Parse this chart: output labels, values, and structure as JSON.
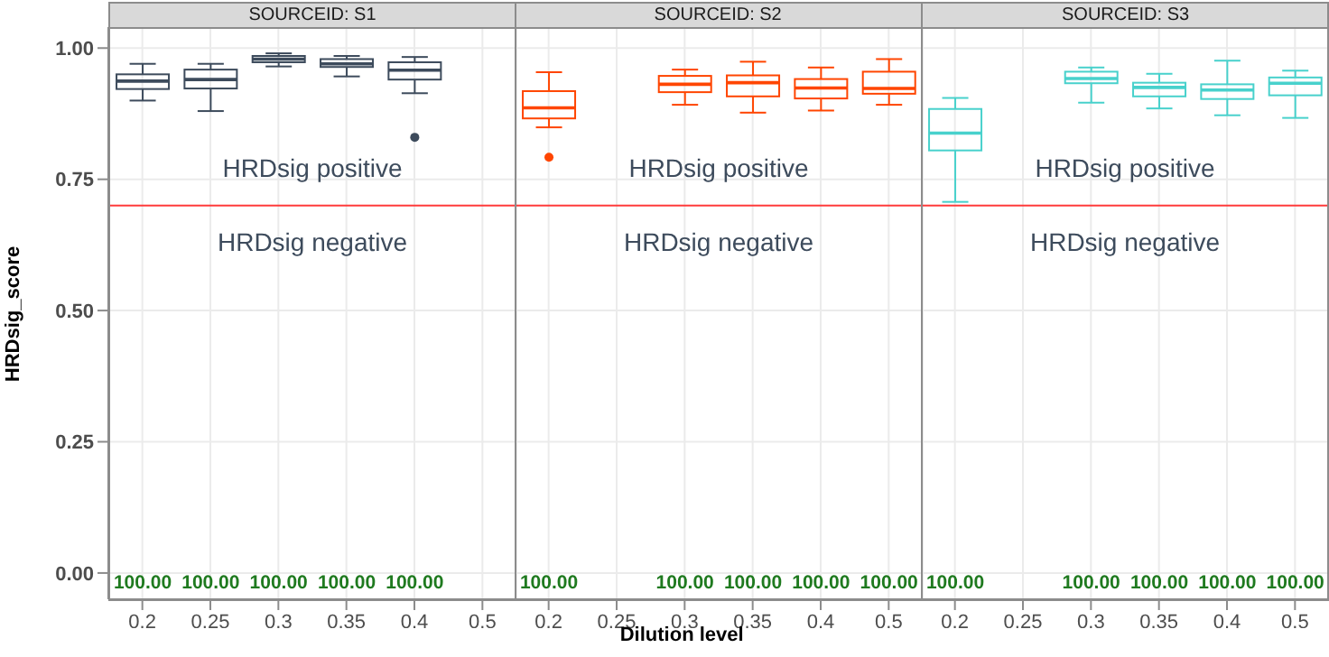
{
  "chart_data": [
    {
      "type": "box",
      "title": "SOURCEID: S1",
      "ylabel": "HRDsig_score",
      "categories": [
        "0.2",
        "0.25",
        "0.3",
        "0.35",
        "0.4",
        "0.5"
      ],
      "color": "#3d4b5c",
      "boxes": [
        {
          "low": 0.9,
          "q1": 0.922,
          "median": 0.937,
          "q3": 0.95,
          "high": 0.97
        },
        {
          "low": 0.88,
          "q1": 0.923,
          "median": 0.94,
          "q3": 0.959,
          "high": 0.97
        },
        {
          "low": 0.965,
          "q1": 0.973,
          "median": 0.979,
          "q3": 0.985,
          "high": 0.99
        },
        {
          "low": 0.946,
          "q1": 0.964,
          "median": 0.97,
          "q3": 0.979,
          "high": 0.985
        },
        {
          "low": 0.914,
          "q1": 0.94,
          "median": 0.958,
          "q3": 0.973,
          "high": 0.983,
          "outliers": [
            0.83
          ]
        },
        null
      ],
      "ylim": [
        -0.05,
        1.04
      ],
      "yticks": [
        {
          "value": 0,
          "label": "0.00"
        },
        {
          "value": 0.25,
          "label": "0.25"
        },
        {
          "value": 0.5,
          "label": "0.50"
        },
        {
          "value": 0.75,
          "label": "0.75"
        },
        {
          "value": 1,
          "label": "1.00"
        }
      ],
      "grid": true,
      "ref_lines": [
        {
          "axis": "y",
          "value": 0.7,
          "color": "#ff3b3b"
        }
      ],
      "annotations": [
        "HRDsig positive",
        "HRDsig negative",
        "100.00",
        "100.00",
        "100.00",
        "100.00",
        "100.00"
      ]
    },
    {
      "type": "box",
      "title": "SOURCEID: S2",
      "xlabel": "Dilution level",
      "categories": [
        "0.2",
        "0.25",
        "0.3",
        "0.35",
        "0.4",
        "0.5"
      ],
      "color": "#ff4500",
      "tick_labels": "x",
      "boxes": [
        {
          "low": 0.849,
          "q1": 0.866,
          "median": 0.886,
          "q3": 0.918,
          "high": 0.954,
          "outliers": [
            0.792
          ]
        },
        null,
        {
          "low": 0.892,
          "q1": 0.916,
          "median": 0.931,
          "q3": 0.947,
          "high": 0.959
        },
        {
          "low": 0.877,
          "q1": 0.908,
          "median": 0.934,
          "q3": 0.948,
          "high": 0.974
        },
        {
          "low": 0.881,
          "q1": 0.904,
          "median": 0.924,
          "q3": 0.941,
          "high": 0.963
        },
        {
          "low": 0.892,
          "q1": 0.913,
          "median": 0.923,
          "q3": 0.955,
          "high": 0.979
        }
      ],
      "ylim": [
        -0.05,
        1.04
      ],
      "yticks": [
        0,
        0.25,
        0.5,
        0.75,
        1
      ],
      "grid": true,
      "ref_lines": [
        {
          "axis": "y",
          "value": 0.7,
          "color": "#ff3b3b"
        }
      ],
      "annotations": [
        "HRDsig positive",
        "HRDsig negative",
        "100.00",
        "100.00",
        "100.00",
        "100.00",
        "100.00"
      ]
    },
    {
      "type": "box",
      "title": "SOURCEID: S3",
      "categories": [
        "0.2",
        "0.25",
        "0.3",
        "0.35",
        "0.4",
        "0.5"
      ],
      "color": "#48d1cc",
      "tick_labels": "x",
      "boxes": [
        {
          "low": 0.707,
          "q1": 0.805,
          "median": 0.838,
          "q3": 0.884,
          "high": 0.905
        },
        null,
        {
          "low": 0.896,
          "q1": 0.933,
          "median": 0.942,
          "q3": 0.955,
          "high": 0.963
        },
        {
          "low": 0.885,
          "q1": 0.908,
          "median": 0.925,
          "q3": 0.934,
          "high": 0.951
        },
        {
          "low": 0.872,
          "q1": 0.903,
          "median": 0.92,
          "q3": 0.931,
          "high": 0.976
        },
        {
          "low": 0.867,
          "q1": 0.91,
          "median": 0.933,
          "q3": 0.944,
          "high": 0.957
        }
      ],
      "ylim": [
        -0.05,
        1.04
      ],
      "yticks": [
        0,
        0.25,
        0.5,
        0.75,
        1
      ],
      "grid": true,
      "ref_lines": [
        {
          "axis": "y",
          "value": 0.7,
          "color": "#ff3b3b"
        }
      ],
      "annotations": [
        "HRDsig positive",
        "HRDsig negative",
        "100.00",
        "100.00",
        "100.00",
        "100.00",
        "100.00"
      ]
    }
  ]
}
